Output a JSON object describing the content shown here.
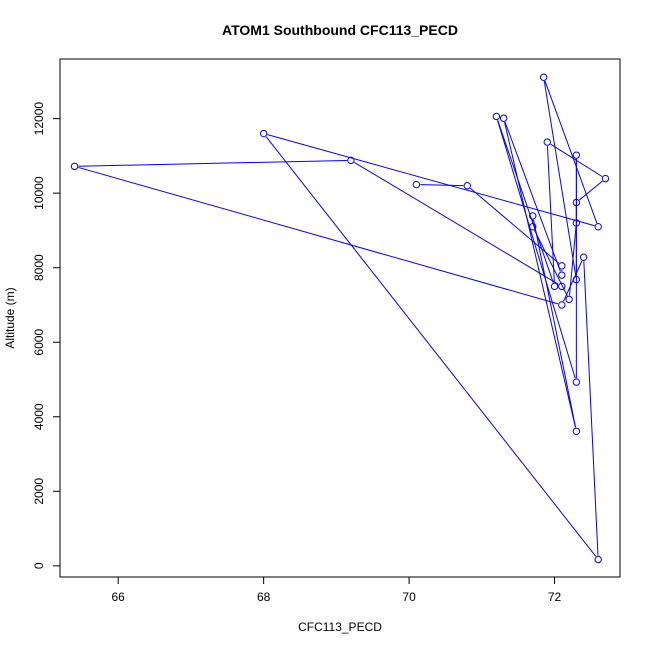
{
  "chart_data": {
    "type": "line",
    "title": "ATOM1 Southbound CFC113_PECD",
    "xlabel": "CFC113_PECD",
    "ylabel": "Altitude (m)",
    "xlim": [
      65.2,
      72.9
    ],
    "ylim": [
      -300,
      13600
    ],
    "xticks": [
      66,
      68,
      70,
      72
    ],
    "yticks": [
      0,
      2000,
      4000,
      6000,
      8000,
      10000,
      12000
    ],
    "grid": false,
    "series_color": "#0000ff",
    "series": [
      {
        "points": [
          {
            "x": 70.1,
            "y": 10230
          },
          {
            "x": 70.8,
            "y": 10200
          },
          {
            "x": 72.1,
            "y": 8050
          },
          {
            "x": 72.1,
            "y": 7800
          },
          {
            "x": 71.3,
            "y": 12010
          },
          {
            "x": 72.3,
            "y": 3610
          },
          {
            "x": 71.7,
            "y": 9390
          },
          {
            "x": 71.7,
            "y": 9100
          },
          {
            "x": 72.2,
            "y": 7150
          },
          {
            "x": 72.3,
            "y": 9200
          },
          {
            "x": 72.3,
            "y": 9750
          },
          {
            "x": 72.7,
            "y": 10390
          },
          {
            "x": 71.9,
            "y": 11370
          },
          {
            "x": 72.0,
            "y": 7500
          },
          {
            "x": 71.2,
            "y": 12060
          },
          {
            "x": 72.3,
            "y": 4930
          },
          {
            "x": 72.3,
            "y": 11020
          },
          {
            "x": 72.3,
            "y": 7680
          },
          {
            "x": 71.85,
            "y": 13110
          },
          {
            "x": 72.6,
            "y": 9100
          },
          {
            "x": 68.0,
            "y": 11600
          },
          {
            "x": 72.6,
            "y": 170
          },
          {
            "x": 72.4,
            "y": 8280
          },
          {
            "x": 72.1,
            "y": 7000
          },
          {
            "x": 65.4,
            "y": 10720
          },
          {
            "x": 69.2,
            "y": 10880
          },
          {
            "x": 72.1,
            "y": 7500
          }
        ]
      }
    ]
  }
}
